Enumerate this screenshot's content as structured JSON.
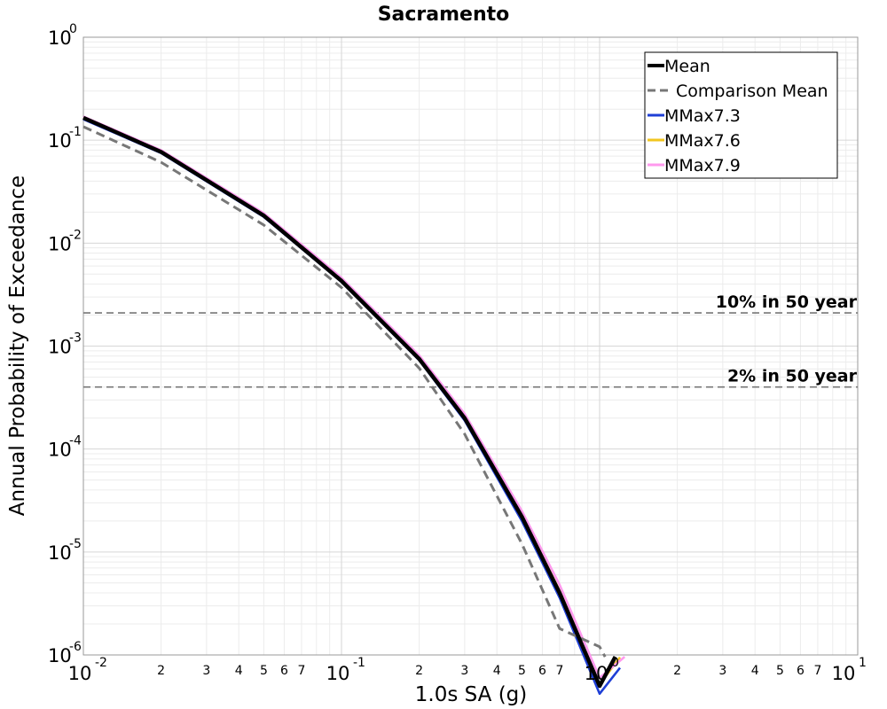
{
  "chart_data": {
    "type": "line",
    "title": "Sacramento",
    "xlabel": "1.0s SA (g)",
    "ylabel": "Annual Probability of Exceedance",
    "x_scale": "log",
    "y_scale": "log",
    "xlim": [
      0.01,
      10
    ],
    "ylim": [
      1e-06,
      1
    ],
    "grid": true,
    "legend_position": "top-right",
    "x_major_ticks": [
      {
        "base": "10",
        "exp": "-2",
        "value": 0.01
      },
      {
        "base": "10",
        "exp": "-1",
        "value": 0.1
      },
      {
        "base": "10",
        "exp": "0",
        "value": 1
      },
      {
        "base": "10",
        "exp": "1",
        "value": 10
      }
    ],
    "x_minor_labels": [
      "2",
      "3",
      "4",
      "5",
      "6",
      "7"
    ],
    "y_major_ticks": [
      {
        "base": "10",
        "exp": "0",
        "value": 1
      },
      {
        "base": "10",
        "exp": "-1",
        "value": 0.1
      },
      {
        "base": "10",
        "exp": "-2",
        "value": 0.01
      },
      {
        "base": "10",
        "exp": "-3",
        "value": 0.001
      },
      {
        "base": "10",
        "exp": "-4",
        "value": 0.0001
      },
      {
        "base": "10",
        "exp": "-5",
        "value": 1e-05
      },
      {
        "base": "10",
        "exp": "-6",
        "value": 1e-06
      }
    ],
    "reference_lines": [
      {
        "label": "10% in 50 year",
        "y": 0.0021,
        "color": "#777777"
      },
      {
        "label": "2% in 50 year",
        "y": 0.0004,
        "color": "#777777"
      }
    ],
    "series": [
      {
        "name": "MMax7.3",
        "color": "#1f3fd6",
        "dash": "solid",
        "x": [
          0.01,
          0.02,
          0.05,
          0.1,
          0.2,
          0.3,
          0.5,
          0.7,
          1.0,
          1.2
        ],
        "y": [
          0.16,
          0.075,
          0.018,
          0.0042,
          0.00073,
          0.00019,
          2e-05,
          3.6e-06,
          4.2e-07,
          7.5e-07
        ]
      },
      {
        "name": "MMax7.6",
        "color": "#f2c61f",
        "dash": "solid",
        "x": [
          0.01,
          0.02,
          0.05,
          0.1,
          0.2,
          0.3,
          0.5,
          0.7,
          1.0,
          1.2
        ],
        "y": [
          0.165,
          0.078,
          0.0188,
          0.0044,
          0.00077,
          0.00021,
          2.3e-05,
          4.2e-06,
          5.2e-07,
          9.5e-07
        ]
      },
      {
        "name": "MMax7.9",
        "color": "#ff99ee",
        "dash": "solid",
        "x": [
          0.01,
          0.02,
          0.05,
          0.1,
          0.2,
          0.3,
          0.5,
          0.7,
          1.0,
          1.25
        ],
        "y": [
          0.17,
          0.08,
          0.0195,
          0.0046,
          0.00081,
          0.00022,
          2.5e-05,
          4.8e-06,
          6e-07,
          9.6e-07
        ]
      },
      {
        "name": "Comparison Mean",
        "color": "#777777",
        "dash": "dashed",
        "x": [
          0.01,
          0.02,
          0.05,
          0.1,
          0.2,
          0.3,
          0.5,
          0.7,
          1.0,
          1.05
        ],
        "y": [
          0.135,
          0.061,
          0.015,
          0.0037,
          0.00061,
          0.00014,
          1.2e-05,
          1.8e-06,
          1.2e-06,
          9.6e-07
        ]
      },
      {
        "name": "Mean",
        "color": "#000000",
        "dash": "solid",
        "x": [
          0.01,
          0.02,
          0.05,
          0.1,
          0.2,
          0.3,
          0.5,
          0.7,
          1.0,
          1.15
        ],
        "y": [
          0.165,
          0.077,
          0.0185,
          0.0043,
          0.00075,
          0.0002,
          2.2e-05,
          4e-06,
          5e-07,
          9.6e-07
        ]
      }
    ],
    "legend_order": [
      "Mean",
      "Comparison Mean",
      "MMax7.3",
      "MMax7.6",
      "MMax7.9"
    ]
  }
}
